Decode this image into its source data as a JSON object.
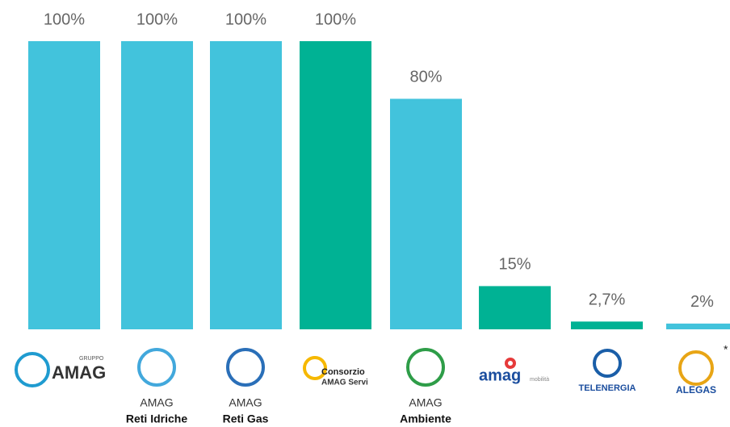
{
  "chart_data": {
    "type": "bar",
    "categories": [
      [
        "GRUPPO",
        "AMAG"
      ],
      [
        "AMAG",
        "Reti Idriche"
      ],
      [
        "AMAG",
        "Reti Gas"
      ],
      [
        "Consorzio",
        "AMAG Servi"
      ],
      [
        "AMAG",
        "Ambiente"
      ],
      [
        "amag",
        "mobilità"
      ],
      [
        "TELENERGIA"
      ],
      [
        "ALEGAS"
      ]
    ],
    "values": [
      100,
      100,
      100,
      100,
      80,
      15,
      2.7,
      2
    ],
    "value_labels": [
      "100%",
      "100%",
      "100%",
      "100%",
      "80%",
      "15%",
      "2,7%",
      "2%"
    ],
    "colors": [
      "#42c3dc",
      "#42c3dc",
      "#42c3dc",
      "#00b294",
      "#42c3dc",
      "#00b294",
      "#00b294",
      "#42c3dc"
    ],
    "ylim": [
      0,
      100
    ],
    "note": "*"
  }
}
